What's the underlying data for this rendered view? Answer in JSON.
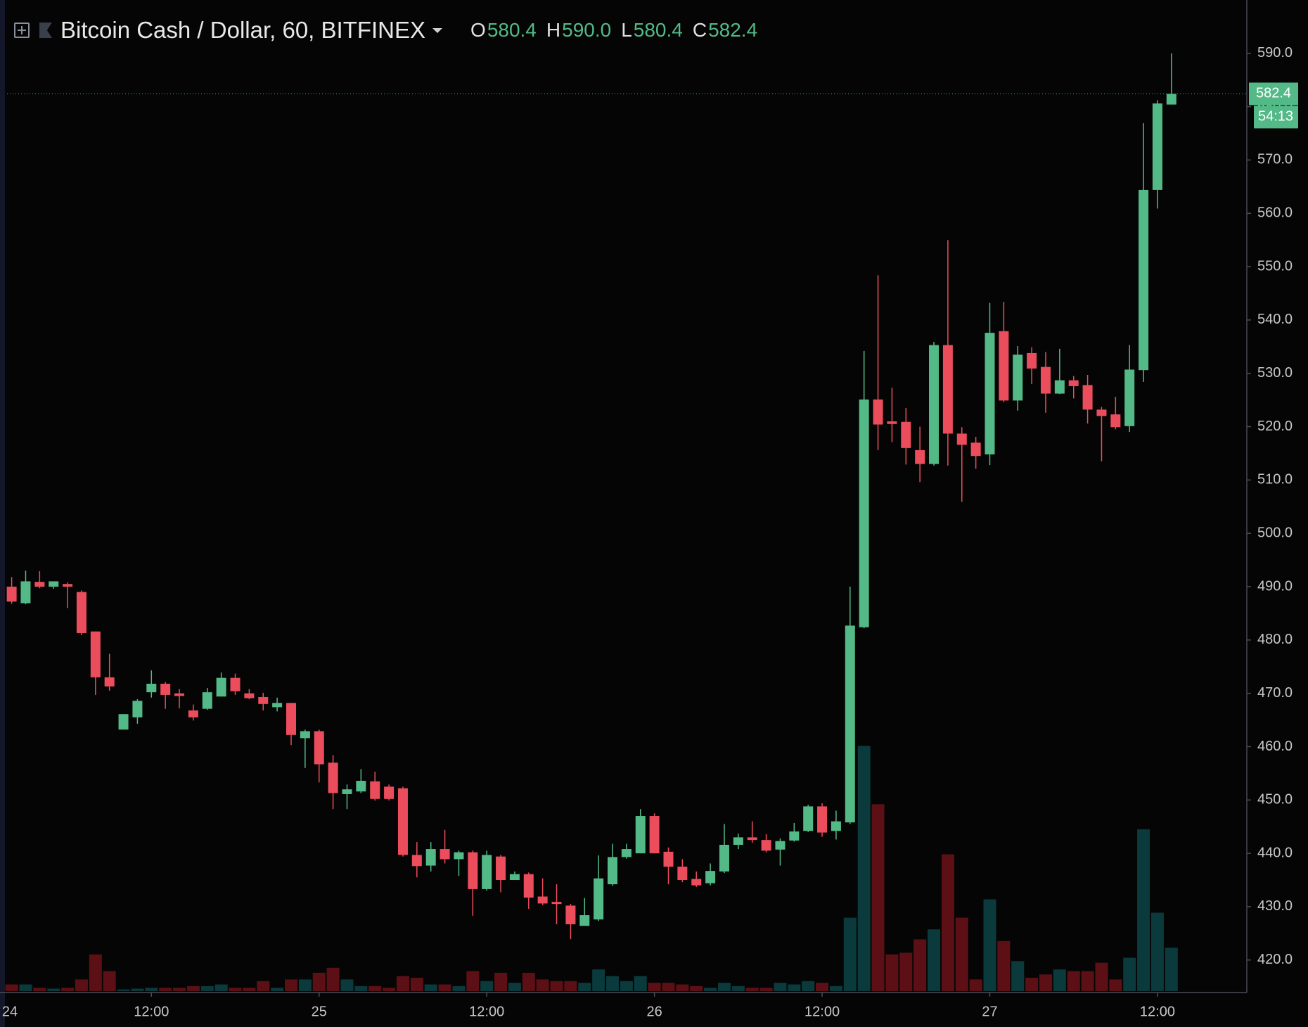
{
  "chart_data": {
    "type": "candlestick",
    "title": "Bitcoin Cash / Dollar, 60, BITFINEX",
    "ohlc_legend": [
      {
        "key": "O",
        "value": "580.4"
      },
      {
        "key": "H",
        "value": "590.0"
      },
      {
        "key": "L",
        "value": "580.4"
      },
      {
        "key": "C",
        "value": "582.4"
      }
    ],
    "last_price_label": "582.4",
    "countdown": "54:13",
    "up_color": "#53b987",
    "down_color": "#eb4d5c",
    "volume_up_color": "#0b3a3d",
    "volume_down_color": "#5c1016",
    "categories": [
      null,
      null,
      null,
      null,
      null,
      null,
      null,
      null,
      null,
      null,
      null,
      null,
      null,
      null,
      null,
      null,
      null,
      null,
      null,
      null,
      null,
      null,
      null,
      null,
      null,
      null,
      null,
      null,
      null,
      null,
      null,
      null,
      null,
      null,
      null,
      null,
      null,
      null,
      null,
      null,
      null,
      null,
      null,
      null,
      null,
      null,
      null,
      null,
      null,
      null,
      null,
      null,
      null,
      null,
      null,
      null,
      null,
      null,
      null,
      null,
      null,
      null,
      null,
      null,
      null,
      null,
      null,
      null,
      null,
      null,
      null,
      null,
      null,
      null,
      null,
      null,
      null,
      null,
      null,
      null,
      null,
      null,
      null,
      null
    ],
    "open": [
      490,
      486.9,
      490.9,
      490,
      490.5,
      489,
      481.6,
      473,
      463.2,
      465.5,
      470.2,
      471.8,
      470,
      466.8,
      467.1,
      469.4,
      472.9,
      470,
      469.3,
      467.4,
      468.2,
      461.6,
      462.9,
      457,
      451.1,
      451.6,
      453.5,
      452.5,
      452.2,
      439.7,
      437.7,
      440.8,
      438.9,
      440.2,
      433.3,
      439.4,
      435,
      436.1,
      431.9,
      430.9,
      430.2,
      426.4,
      427.6,
      434.2,
      439.3,
      440,
      447,
      440.3,
      437.5,
      435.2,
      434.4,
      436.6,
      441.6,
      443,
      442.5,
      440.7,
      442.4,
      444.2,
      448.8,
      444.2,
      445.8,
      482.4,
      525.1,
      521,
      520.9,
      515.6,
      513,
      535.3,
      518.7,
      517,
      514.8,
      537.9,
      524.9,
      533.8,
      531.2,
      526.2,
      528.7,
      527.8,
      523.2,
      522.3,
      520.1,
      530.6,
      564.4,
      580.4
    ],
    "high": [
      491.8,
      493,
      492.9,
      491,
      490.8,
      489.3,
      481.6,
      477.4,
      466.1,
      468.9,
      474.3,
      472.1,
      470.8,
      467.9,
      471,
      473.9,
      473.7,
      470.8,
      470.1,
      469.2,
      468.2,
      463.2,
      463.2,
      458.4,
      452.9,
      455.8,
      455.3,
      452.9,
      452.5,
      442.1,
      442.1,
      444.4,
      440.5,
      440.5,
      440.5,
      439.7,
      436.6,
      436.4,
      435.3,
      434.2,
      430.5,
      431.6,
      439.6,
      441.8,
      441.8,
      448.3,
      447.5,
      441.1,
      438.9,
      436.6,
      438.1,
      445.5,
      443.7,
      446,
      443.6,
      442.8,
      445.7,
      449.1,
      449.4,
      448,
      490,
      534.2,
      548.4,
      527.3,
      523.5,
      520,
      535.9,
      555,
      519.9,
      518.1,
      543.2,
      543.4,
      535.1,
      534.9,
      534,
      534.6,
      529.5,
      529.7,
      523.7,
      525.6,
      535.3,
      576.9,
      581.2,
      590
    ],
    "low": [
      486.8,
      486.7,
      489.7,
      489.6,
      486,
      480.9,
      469.7,
      470.5,
      463.2,
      464.3,
      469.2,
      467.1,
      467.2,
      464.9,
      466.9,
      469.4,
      469.7,
      468.9,
      466.8,
      466.6,
      460.3,
      456,
      453.3,
      448.3,
      448.3,
      451.3,
      449.9,
      449.9,
      439.4,
      435.5,
      436.6,
      438.1,
      435.8,
      428.3,
      433,
      432.7,
      435.4,
      429.6,
      430.3,
      426.7,
      423.9,
      428.1,
      427.3,
      433.9,
      439,
      440,
      440,
      434.2,
      434.6,
      433.7,
      434,
      436.3,
      440.8,
      442,
      440.2,
      437.7,
      442.2,
      444,
      443.1,
      442.6,
      445.5,
      482.2,
      515.6,
      517.1,
      512.9,
      509.6,
      512.7,
      512.7,
      505.9,
      512.1,
      512.8,
      524.6,
      523,
      528,
      522.6,
      526.1,
      525.3,
      520.6,
      513.5,
      519.5,
      519,
      528.4,
      560.9,
      580.4
    ],
    "close": [
      487.2,
      491,
      490,
      491,
      490,
      481.3,
      473,
      471.3,
      466.1,
      468.6,
      471.8,
      469.7,
      469.5,
      465.5,
      470.2,
      472.9,
      470.4,
      469.1,
      468,
      468.2,
      462.2,
      462.9,
      456.7,
      451.3,
      452,
      453.6,
      450.2,
      450.2,
      439.7,
      437.6,
      440.8,
      438.9,
      440.2,
      433.3,
      439.7,
      435,
      436.1,
      431.7,
      430.6,
      430.5,
      426.7,
      428.4,
      435.3,
      439.3,
      440.8,
      447,
      440,
      437.5,
      435,
      434,
      436.7,
      441.6,
      443,
      442.5,
      440.5,
      442.3,
      444.1,
      448.8,
      443.9,
      446,
      482.7,
      525.1,
      520.4,
      520.5,
      516,
      513,
      535.3,
      518.7,
      516.6,
      514.5,
      537.6,
      524.9,
      533.5,
      530.9,
      526.2,
      528.7,
      527.6,
      523.2,
      522,
      519.9,
      530.7,
      564.4,
      580.6,
      582.4
    ],
    "volume": [
      8,
      8,
      4,
      3,
      4,
      14,
      44,
      24,
      2,
      3,
      4,
      4,
      4,
      6,
      6,
      8,
      4,
      4,
      12,
      4,
      14,
      14,
      22,
      28,
      14,
      6,
      6,
      4,
      18,
      16,
      8,
      8,
      6,
      24,
      12,
      22,
      10,
      22,
      14,
      12,
      12,
      10,
      26,
      18,
      12,
      18,
      10,
      10,
      8,
      6,
      4,
      10,
      6,
      4,
      4,
      10,
      8,
      12,
      10,
      6,
      88,
      294,
      224,
      44,
      46,
      62,
      74,
      164,
      88,
      14,
      110,
      60,
      36,
      16,
      20,
      26,
      24,
      24,
      34,
      14,
      40,
      194,
      94,
      52
    ],
    "ylim": [
      413.9,
      600
    ],
    "yticks": [
      {
        "value": 420,
        "label": "420.0"
      },
      {
        "value": 430,
        "label": "430.0"
      },
      {
        "value": 440,
        "label": "440.0"
      },
      {
        "value": 450,
        "label": "450.0"
      },
      {
        "value": 460,
        "label": "460.0"
      },
      {
        "value": 470,
        "label": "470.0"
      },
      {
        "value": 480,
        "label": "480.0"
      },
      {
        "value": 490,
        "label": "490.0"
      },
      {
        "value": 500,
        "label": "500.0"
      },
      {
        "value": 510,
        "label": "510.0"
      },
      {
        "value": 520,
        "label": "520.0"
      },
      {
        "value": 530,
        "label": "530.0"
      },
      {
        "value": 540,
        "label": "540.0"
      },
      {
        "value": 550,
        "label": "550.0"
      },
      {
        "value": 560,
        "label": "560.0"
      },
      {
        "value": 570,
        "label": "570.0"
      },
      {
        "value": 580,
        "label": "580.0"
      },
      {
        "value": 590,
        "label": "590.0"
      }
    ],
    "xticks": [
      {
        "value": -2,
        "label": "24"
      },
      {
        "value": 10,
        "label": "12:00"
      },
      {
        "value": 22,
        "label": "25"
      },
      {
        "value": 34,
        "label": "12:00"
      },
      {
        "value": 46,
        "label": "26"
      },
      {
        "value": 58,
        "label": "12:00"
      },
      {
        "value": 70,
        "label": "27"
      },
      {
        "value": 82,
        "label": "12:00"
      }
    ]
  }
}
